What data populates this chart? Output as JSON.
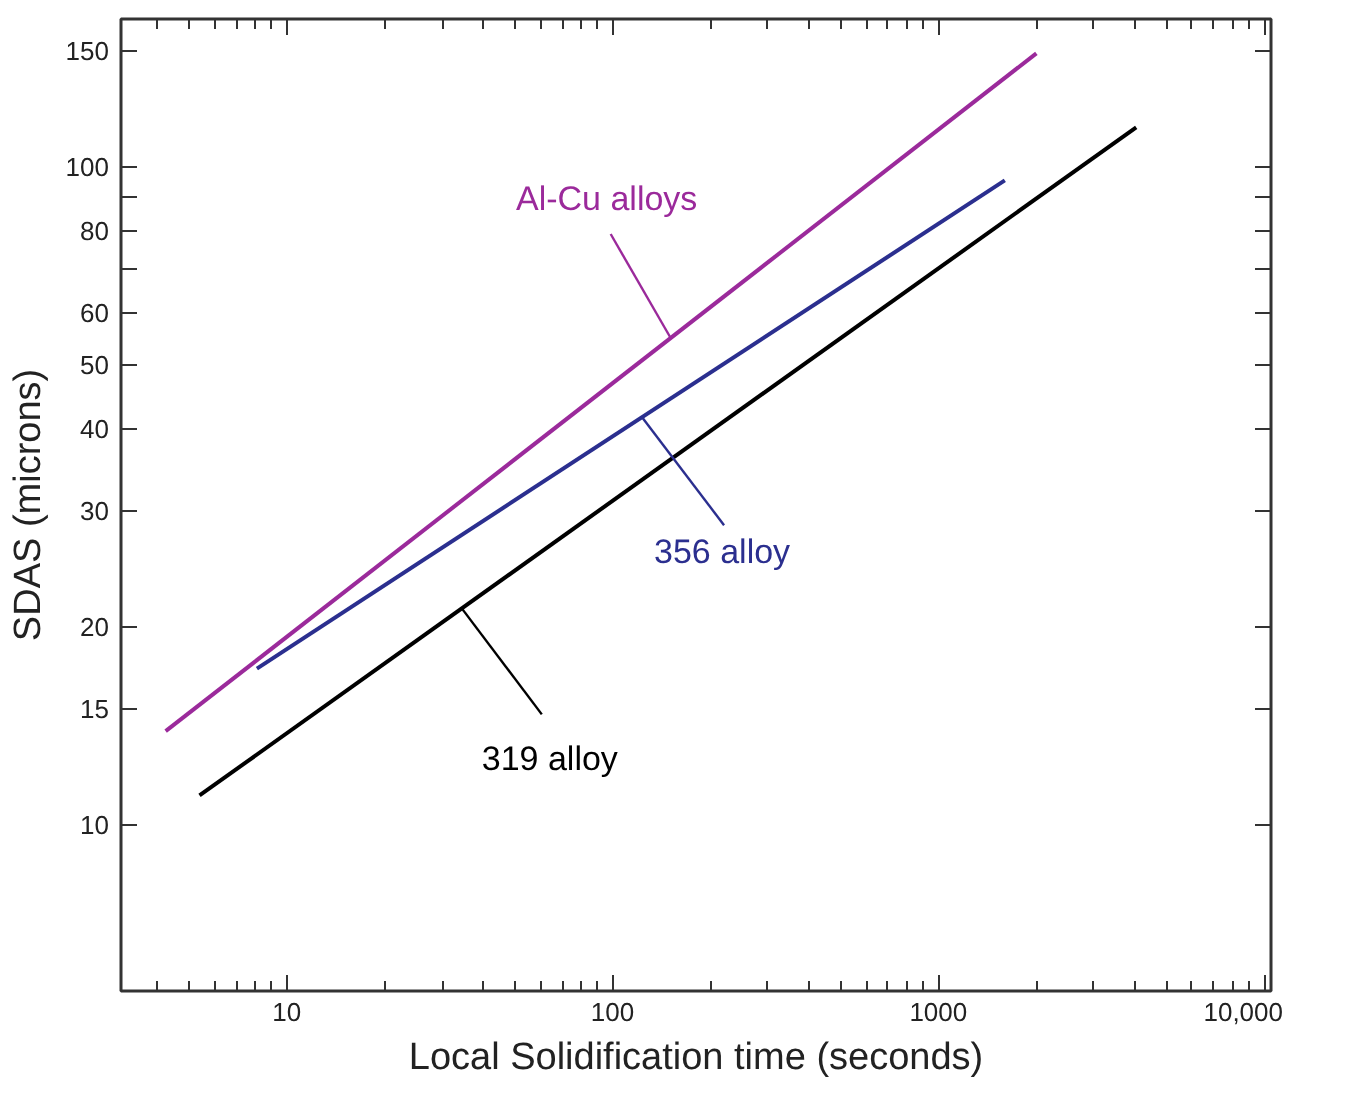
{
  "chart_data": {
    "type": "line",
    "xlabel": "Local Solidification time (seconds)",
    "ylabel": "SDAS (microns)",
    "log": "xy",
    "xlim": [
      3.1,
      10500
    ],
    "ylim": [
      5.6,
      168
    ],
    "xticks": [
      10,
      100,
      1000,
      {
        "value": 10000,
        "label": "10,000"
      }
    ],
    "yticks": [
      10,
      15,
      20,
      30,
      40,
      50,
      60,
      {
        "value": 70,
        "label": null
      },
      80,
      {
        "value": 90,
        "label": null
      },
      100,
      150
    ],
    "series": [
      {
        "name": "Al-Cu alloys",
        "color": "#9b2a9b",
        "x": [
          4.25,
          2000
        ],
        "values": [
          13.9,
          149
        ]
      },
      {
        "name": "356 alloy",
        "color": "#2b2f8f",
        "x": [
          8.1,
          1600
        ],
        "values": [
          17.3,
          95.5
        ]
      },
      {
        "name": "319 alloy",
        "color": "#000000",
        "x": [
          5.4,
          4050
        ],
        "values": [
          11.1,
          115
        ]
      }
    ],
    "grid": false,
    "legend": false
  }
}
